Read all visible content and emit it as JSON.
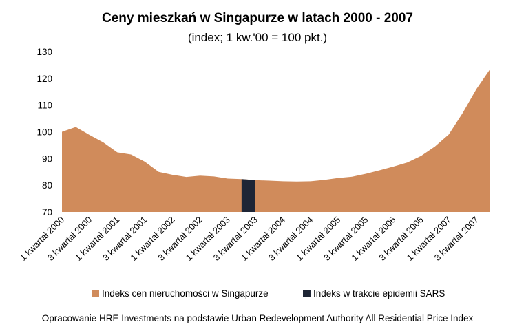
{
  "chart_data": {
    "type": "area",
    "title": "Ceny mieszkań w Singapurze w latach 2000 - 2007",
    "subtitle": "(index; 1 kw.'00 = 100 pkt.)",
    "ylim": [
      70,
      130
    ],
    "yticks": [
      70,
      80,
      90,
      100,
      110,
      120,
      130
    ],
    "x": [
      "1 kwartał 2000",
      "2 kwartał 2000",
      "3 kwartał 2000",
      "4 kwartał 2000",
      "1 kwartał 2001",
      "2 kwartał 2001",
      "3 kwartał 2001",
      "4 kwartał 2001",
      "1 kwartał 2002",
      "2 kwartał 2002",
      "3 kwartał 2002",
      "4 kwartał 2002",
      "1 kwartał 2003",
      "2 kwartał 2003",
      "3 kwartał 2003",
      "4 kwartał 2003",
      "1 kwartał 2004",
      "2 kwartał 2004",
      "3 kwartał 2004",
      "4 kwartał 2004",
      "1 kwartał 2005",
      "2 kwartał 2005",
      "3 kwartał 2005",
      "4 kwartał 2005",
      "1 kwartał 2006",
      "2 kwartał 2006",
      "3 kwartał 2006",
      "4 kwartał 2006",
      "1 kwartał 2007",
      "2 kwartał 2007",
      "3 kwartał 2007",
      "4 kwartał 2007"
    ],
    "xtick_labels": [
      "1 kwartał 2000",
      "3 kwartał 2000",
      "1 kwartał 2001",
      "3 kwartał 2001",
      "1 kwartał 2002",
      "3 kwartał 2002",
      "1 kwartał 2003",
      "3 kwartał 2003",
      "1 kwartał 2004",
      "3 kwartał 2004",
      "1 kwartał 2005",
      "3 kwartał 2005",
      "1 kwartał 2006",
      "3 kwartał 2006",
      "1 kwartał 2007",
      "3 kwartał 2007"
    ],
    "series": [
      {
        "name": "Indeks cen nieruchomości w Singapurze",
        "color": "#d08b5b",
        "values": [
          100.0,
          101.8,
          98.8,
          96.0,
          92.3,
          91.5,
          88.8,
          85.0,
          83.9,
          83.1,
          83.6,
          83.3,
          82.5,
          82.3,
          81.9,
          81.7,
          81.5,
          81.4,
          81.5,
          82.0,
          82.7,
          83.2,
          84.3,
          85.6,
          87.0,
          88.5,
          91.0,
          94.5,
          99.0,
          107.0,
          116.0,
          123.5
        ]
      },
      {
        "name": "Indeks w trakcie epidemii SARS",
        "color": "#1e2535",
        "range": [
          "2 kwartał 2003",
          "3 kwartał 2003"
        ]
      }
    ],
    "legend_position": "bottom",
    "grid": false
  },
  "source_note": "Opracowanie HRE Investments na podstawie Urban Redevelopment Authority All Residential Price Index"
}
